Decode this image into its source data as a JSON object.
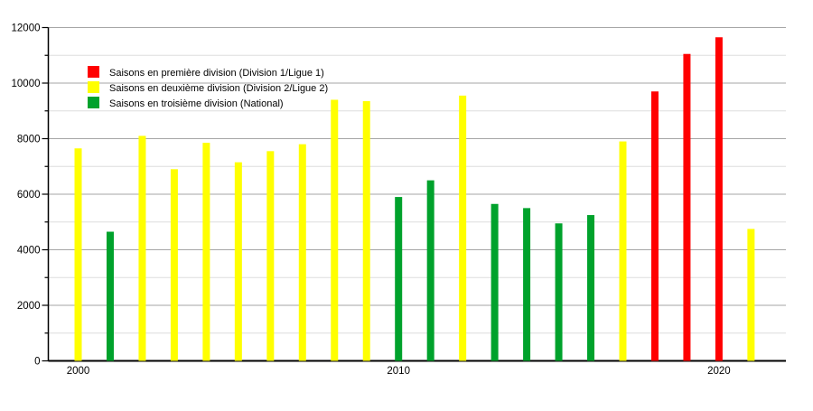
{
  "chart_data": {
    "type": "bar",
    "title": "",
    "xlabel": "",
    "ylabel": "",
    "ylim": [
      0,
      12000
    ],
    "y_major_step": 2000,
    "y_minor_step": 1000,
    "y_tick_labels": [
      "0",
      "2000",
      "4000",
      "6000",
      "8000",
      "10000",
      "12000"
    ],
    "x_ticks": [
      2000,
      2010,
      2020
    ],
    "x_tick_labels": [
      "2000",
      "2010",
      "2020"
    ],
    "grid": true,
    "legend_position": "top-left",
    "series": [
      {
        "key": "division1",
        "label": "Saisons en première division (Division 1/Ligue 1)",
        "color": "#ff0000"
      },
      {
        "key": "division2",
        "label": "Saisons en deuxième division (Division 2/Ligue 2)",
        "color": "#ffff00"
      },
      {
        "key": "division3",
        "label": "Saisons en troisième division (National)",
        "color": "#00a22c"
      }
    ],
    "bars": [
      {
        "year": 2000,
        "value": 7650,
        "series": "division2"
      },
      {
        "year": 2001,
        "value": 4650,
        "series": "division3"
      },
      {
        "year": 2002,
        "value": 8100,
        "series": "division2"
      },
      {
        "year": 2003,
        "value": 6900,
        "series": "division2"
      },
      {
        "year": 2004,
        "value": 7850,
        "series": "division2"
      },
      {
        "year": 2005,
        "value": 7150,
        "series": "division2"
      },
      {
        "year": 2006,
        "value": 7550,
        "series": "division2"
      },
      {
        "year": 2007,
        "value": 7800,
        "series": "division2"
      },
      {
        "year": 2008,
        "value": 9400,
        "series": "division2"
      },
      {
        "year": 2009,
        "value": 9350,
        "series": "division2"
      },
      {
        "year": 2010,
        "value": 5900,
        "series": "division3"
      },
      {
        "year": 2011,
        "value": 6500,
        "series": "division3"
      },
      {
        "year": 2012,
        "value": 9550,
        "series": "division2"
      },
      {
        "year": 2013,
        "value": 5650,
        "series": "division3"
      },
      {
        "year": 2014,
        "value": 5500,
        "series": "division3"
      },
      {
        "year": 2015,
        "value": 4950,
        "series": "division3"
      },
      {
        "year": 2016,
        "value": 5250,
        "series": "division3"
      },
      {
        "year": 2017,
        "value": 7900,
        "series": "division2"
      },
      {
        "year": 2018,
        "value": 9700,
        "series": "division1"
      },
      {
        "year": 2019,
        "value": 11050,
        "series": "division1"
      },
      {
        "year": 2020,
        "value": 11650,
        "series": "division1"
      },
      {
        "year": 2021,
        "value": 4750,
        "series": "division2"
      }
    ],
    "colors": {
      "background": "#ffffff",
      "axis": "#000000",
      "grid_major": "#a6a6a6",
      "grid_minor": "#dddddd",
      "text": "#000000"
    }
  }
}
